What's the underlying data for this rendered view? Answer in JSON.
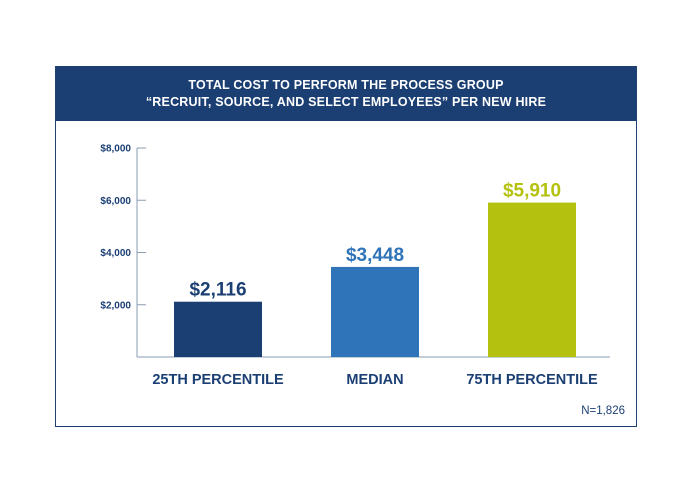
{
  "chart_data": {
    "type": "bar",
    "title": "TOTAL COST TO PERFORM THE PROCESS GROUP",
    "subtitle": "“RECRUIT, SOURCE, AND SELECT EMPLOYEES” PER NEW HIRE",
    "categories": [
      "25TH PERCENTILE",
      "MEDIAN",
      "75TH PERCENTILE"
    ],
    "values": [
      2116,
      3448,
      5910
    ],
    "data_labels": [
      "$2,116",
      "$3,448",
      "$5,910"
    ],
    "bar_colors": [
      "#1b3f73",
      "#2f74b8",
      "#b5c10f"
    ],
    "label_colors": [
      "#1b3f73",
      "#2f74b8",
      "#b5c10f"
    ],
    "yticks": [
      2000,
      4000,
      6000,
      8000
    ],
    "ytick_labels": [
      "$2,000",
      "$4,000",
      "$6,000",
      "$8,000"
    ],
    "ylim": [
      0,
      8000
    ],
    "xlabel": "",
    "ylabel": "",
    "grid": false,
    "note": "N=1,826"
  }
}
